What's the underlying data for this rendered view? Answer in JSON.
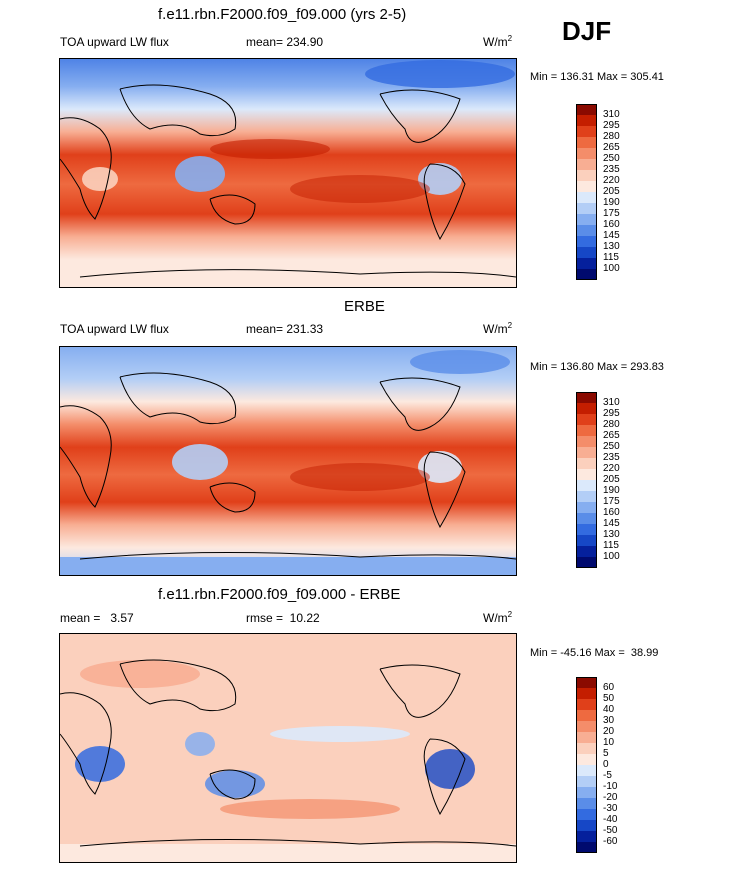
{
  "season": "DJF",
  "panels": [
    {
      "title": "f.e11.rbn.F2000.f09_f09.000 (yrs 2-5)",
      "left_label": "TOA upward LW flux",
      "center_label": "mean= 234.90",
      "units": "W/m",
      "units_sup": "2",
      "range_text": "Min = 136.31 Max = 305.41",
      "colorbar": {
        "labels": [
          "310",
          "295",
          "280",
          "265",
          "250",
          "235",
          "220",
          "205",
          "190",
          "175",
          "160",
          "145",
          "130",
          "115",
          "100"
        ],
        "colors": [
          "#8a0a00",
          "#c41e00",
          "#e0401a",
          "#ee6a40",
          "#f48d6a",
          "#f8ae93",
          "#fbd0bd",
          "#fde9df",
          "#dbe9fb",
          "#b3cef6",
          "#86aef0",
          "#5a8de8",
          "#336be0",
          "#1647c6",
          "#05209c",
          "#000a6e"
        ]
      }
    },
    {
      "title": "ERBE",
      "left_label": "TOA upward LW flux",
      "center_label": "mean= 231.33",
      "units": "W/m",
      "units_sup": "2",
      "range_text": "Min = 136.80 Max = 293.83",
      "colorbar": {
        "labels": [
          "310",
          "295",
          "280",
          "265",
          "250",
          "235",
          "220",
          "205",
          "190",
          "175",
          "160",
          "145",
          "130",
          "115",
          "100"
        ],
        "colors": [
          "#8a0a00",
          "#c41e00",
          "#e0401a",
          "#ee6a40",
          "#f48d6a",
          "#f8ae93",
          "#fbd0bd",
          "#fde9df",
          "#dbe9fb",
          "#b3cef6",
          "#86aef0",
          "#5a8de8",
          "#336be0",
          "#1647c6",
          "#05209c",
          "#000a6e"
        ]
      }
    },
    {
      "title": "f.e11.rbn.F2000.f09_f09.000 - ERBE",
      "left_label": "mean =   3.57",
      "center_label": "rmse =  10.22",
      "units": "W/m",
      "units_sup": "2",
      "range_text": "Min = -45.16 Max =  38.99",
      "colorbar": {
        "labels": [
          "60",
          "50",
          "40",
          "30",
          "20",
          "10",
          "5",
          "0",
          "-5",
          "-10",
          "-20",
          "-30",
          "-40",
          "-50",
          "-60"
        ],
        "colors": [
          "#8a0a00",
          "#c41e00",
          "#e0401a",
          "#ee6a40",
          "#f48d6a",
          "#f8ae93",
          "#fbd0bd",
          "#fde9df",
          "#dbe9fb",
          "#b3cef6",
          "#86aef0",
          "#5a8de8",
          "#336be0",
          "#1647c6",
          "#05209c",
          "#000a6e"
        ]
      }
    }
  ]
}
